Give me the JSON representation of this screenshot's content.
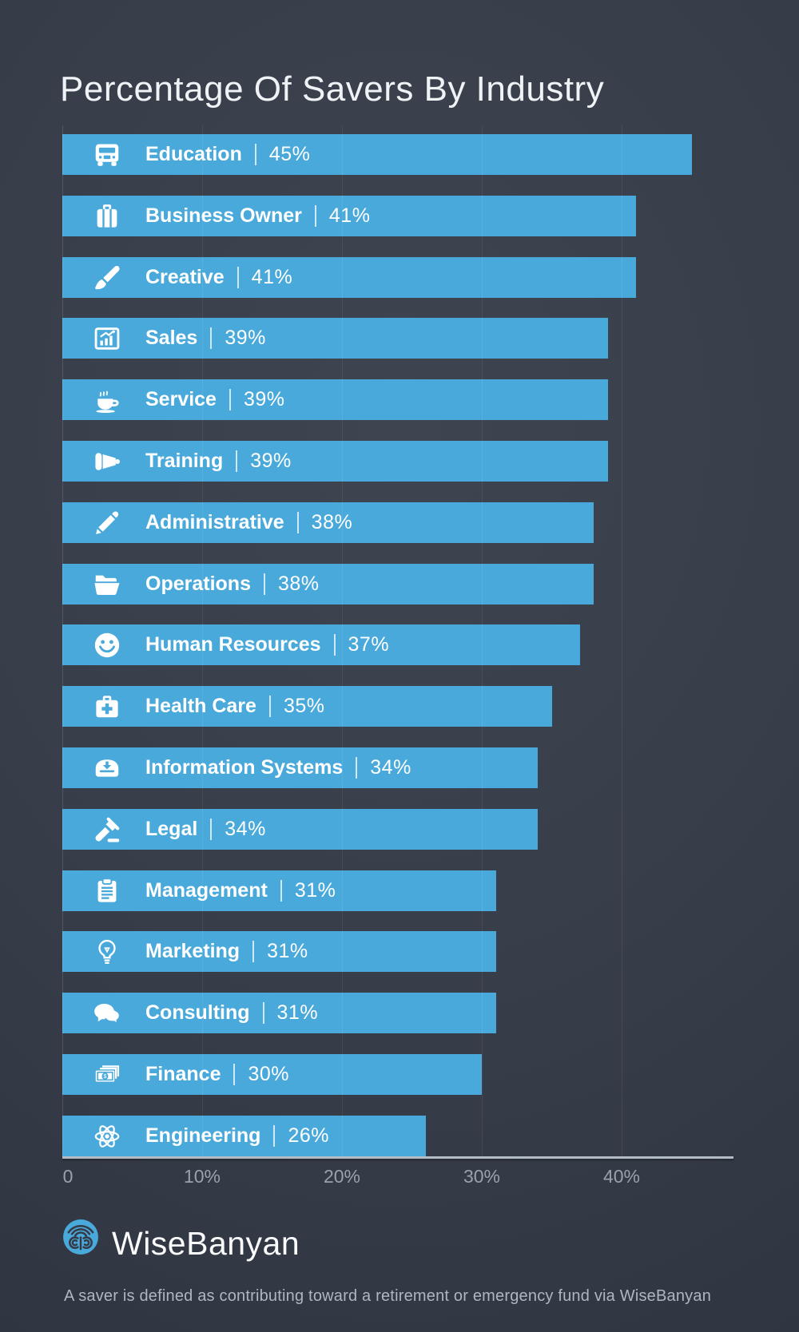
{
  "title": "Percentage Of Savers By Industry",
  "chart_data": {
    "type": "bar",
    "orientation": "horizontal",
    "title": "Percentage Of Savers By Industry",
    "xlabel": "",
    "ylabel": "",
    "xlim": [
      0,
      47
    ],
    "grid": true,
    "unit": "%",
    "value_separator": "|",
    "categories": [
      "Education",
      "Business Owner",
      "Creative",
      "Sales",
      "Service",
      "Training",
      "Administrative",
      "Operations",
      "Human Resources",
      "Health Care",
      "Information Systems",
      "Legal",
      "Management",
      "Marketing",
      "Consulting",
      "Finance",
      "Engineering"
    ],
    "values": [
      45,
      41,
      41,
      39,
      39,
      39,
      38,
      38,
      37,
      35,
      34,
      34,
      31,
      31,
      31,
      30,
      26
    ],
    "icons": [
      "school-bus-icon",
      "briefcase-icon",
      "paintbrush-icon",
      "framed-chart-icon",
      "coffee-cup-icon",
      "megaphone-icon",
      "pen-icon",
      "open-folder-icon",
      "smiley-icon",
      "first-aid-kit-icon",
      "inbox-download-icon",
      "gavel-icon",
      "clipboard-icon",
      "lightbulb-icon",
      "speech-bubbles-icon",
      "banknotes-icon",
      "atom-icon"
    ],
    "x_ticks": {
      "values": [
        0,
        10,
        20,
        30,
        40
      ],
      "labels": [
        "0",
        "10%",
        "20%",
        "30%",
        "40%"
      ]
    },
    "legend": null
  },
  "colors": {
    "background": "#373D49",
    "bar": "#4AA9DB",
    "bar_text": "#FFFFFF",
    "axis_line": "#B3BBC4",
    "tick_text": "#99A2AC",
    "title_text": "#F0F3F6",
    "footnote_text": "#AEB6BF"
  },
  "branding": {
    "logo": "wisebanyan-logo",
    "name": "WiseBanyan"
  },
  "footnote": "A saver is defined as contributing toward a retirement or emergency fund via WiseBanyan"
}
